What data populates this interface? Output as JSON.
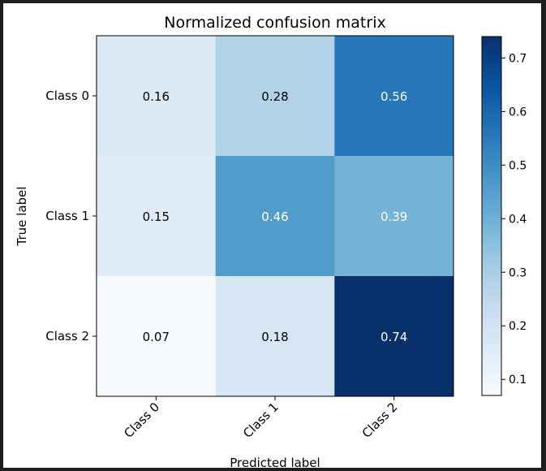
{
  "window": {
    "background": "#1e1e1e"
  },
  "chart_data": {
    "type": "heatmap",
    "title": "Normalized confusion matrix",
    "xlabel": "Predicted label",
    "ylabel": "True label",
    "x_categories": [
      "Class 0",
      "Class 1",
      "Class 2"
    ],
    "y_categories": [
      "Class 0",
      "Class 1",
      "Class 2"
    ],
    "values": [
      [
        0.16,
        0.28,
        0.56
      ],
      [
        0.15,
        0.46,
        0.39
      ],
      [
        0.07,
        0.18,
        0.74
      ]
    ],
    "value_labels": [
      [
        "0.16",
        "0.28",
        "0.56"
      ],
      [
        "0.15",
        "0.46",
        "0.39"
      ],
      [
        "0.07",
        "0.18",
        "0.74"
      ]
    ],
    "colormap": "Blues",
    "vmin": 0.07,
    "vmax": 0.74,
    "colorbar_ticks": [
      0.1,
      0.2,
      0.3,
      0.4,
      0.5,
      0.6,
      0.7
    ],
    "colorbar_tick_labels": [
      "0.1",
      "0.2",
      "0.3",
      "0.4",
      "0.5",
      "0.6",
      "0.7"
    ],
    "x_tick_rotation": 45,
    "grid": false,
    "colors": {
      "low": "#f7fbff",
      "high": "#08306b",
      "text_dark": "#000000",
      "text_light": "#ffffff"
    }
  }
}
